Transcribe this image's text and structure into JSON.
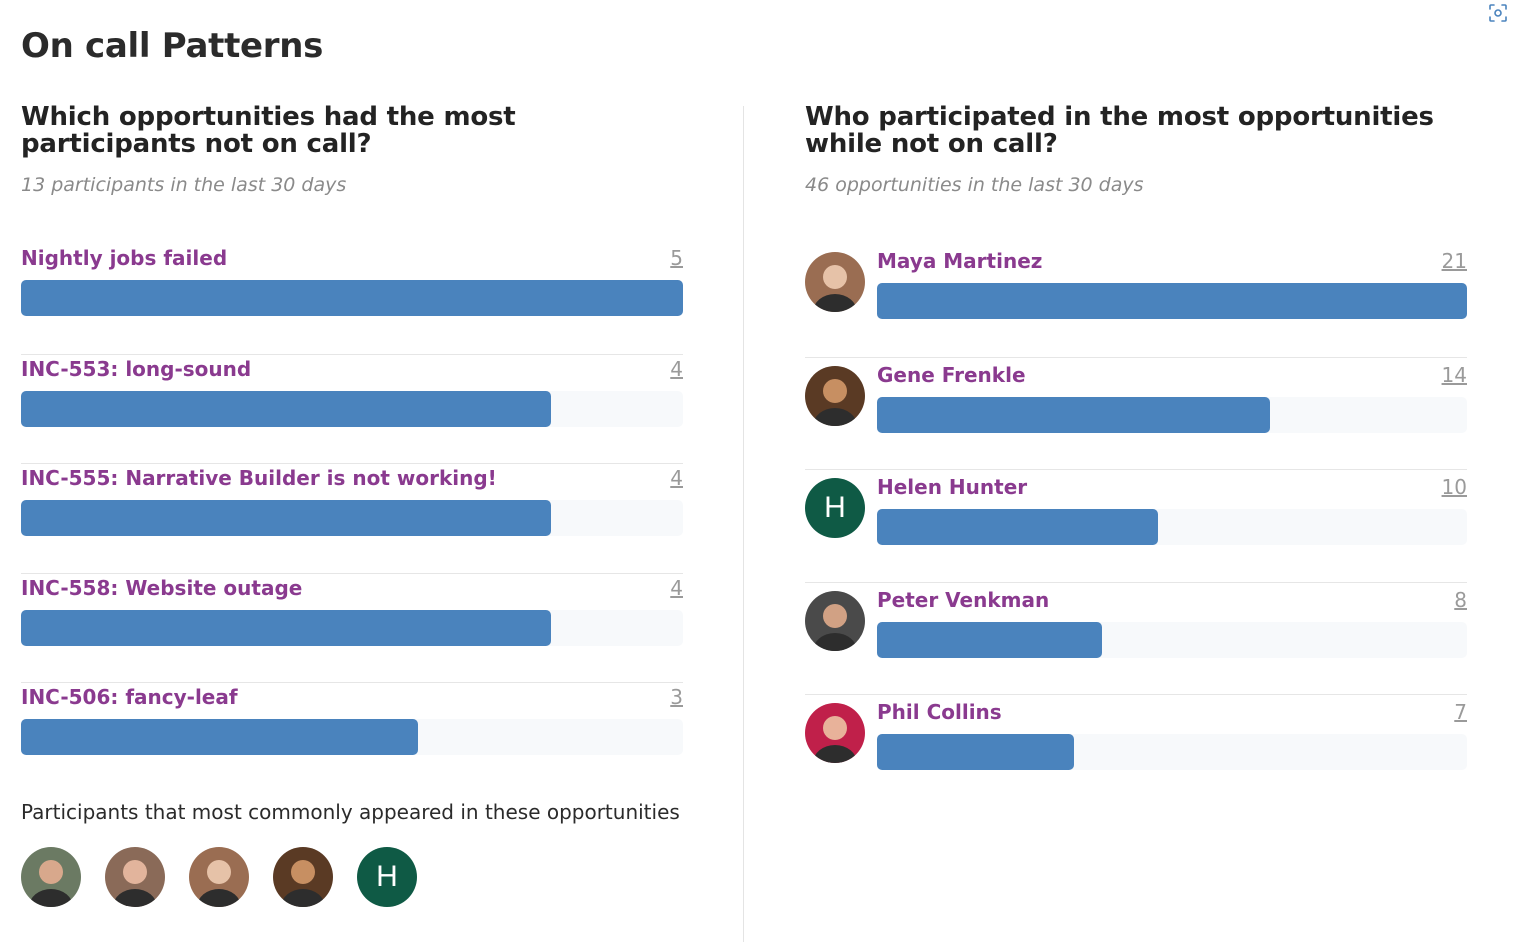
{
  "page": {
    "title": "On call Patterns"
  },
  "left_panel": {
    "title": "Which opportunities had the most participants not on call?",
    "subtitle": "13 participants in the last 30 days",
    "max_value": 5,
    "rows": [
      {
        "label": "Nightly jobs failed",
        "count": "5",
        "value": 5
      },
      {
        "label": "INC-553: long-sound",
        "count": "4",
        "value": 4
      },
      {
        "label": "INC-555: Narrative Builder is not working!",
        "count": "4",
        "value": 4
      },
      {
        "label": "INC-558: Website outage",
        "count": "4",
        "value": 4
      },
      {
        "label": "INC-506: fancy-leaf",
        "count": "3",
        "value": 3
      }
    ],
    "common_title": "Participants that most commonly appeared in these opportunities",
    "common_avatars": [
      {
        "type": "photo",
        "icon": "person-photo-avatar",
        "bg": "#6b7a63",
        "face": "#d8a88c"
      },
      {
        "type": "photo",
        "icon": "person-photo-avatar",
        "bg": "#8a6a58",
        "face": "#e2b49c"
      },
      {
        "type": "photo",
        "icon": "person-photo-avatar",
        "bg": "#9a6d52",
        "face": "#e6c2a8"
      },
      {
        "type": "photo",
        "icon": "person-photo-avatar",
        "bg": "#5a3a24",
        "face": "#c78f62"
      },
      {
        "type": "letter",
        "letter": "H",
        "bg": "#0f5a45"
      }
    ]
  },
  "right_panel": {
    "title": "Who participated in the most opportunities while not on call?",
    "subtitle": "46 opportunities in the last 30 days",
    "max_value": 21,
    "rows": [
      {
        "label": "Maya Martinez",
        "count": "21",
        "value": 21,
        "avatar": {
          "type": "photo",
          "icon": "person-photo-avatar",
          "bg": "#9a6d52",
          "face": "#e6c2a8"
        }
      },
      {
        "label": "Gene Frenkle",
        "count": "14",
        "value": 14,
        "avatar": {
          "type": "photo",
          "icon": "person-photo-avatar",
          "bg": "#5a3a24",
          "face": "#c78f62"
        }
      },
      {
        "label": "Helen Hunter",
        "count": "10",
        "value": 10,
        "avatar": {
          "type": "letter",
          "letter": "H",
          "bg": "#0f5a45"
        }
      },
      {
        "label": "Peter Venkman",
        "count": "8",
        "value": 8,
        "avatar": {
          "type": "photo",
          "icon": "person-photo-avatar",
          "bg": "#4a4a4a",
          "face": "#d1a184"
        }
      },
      {
        "label": "Phil Collins",
        "count": "7",
        "value": 7,
        "avatar": {
          "type": "photo",
          "icon": "person-photo-avatar",
          "bg": "#c0204a",
          "face": "#e8b29a"
        }
      }
    ]
  },
  "colors": {
    "bar": "#4a83bd",
    "track": "#f7f9fb",
    "link": "#8a3a8f",
    "muted": "#8a8a8a"
  }
}
